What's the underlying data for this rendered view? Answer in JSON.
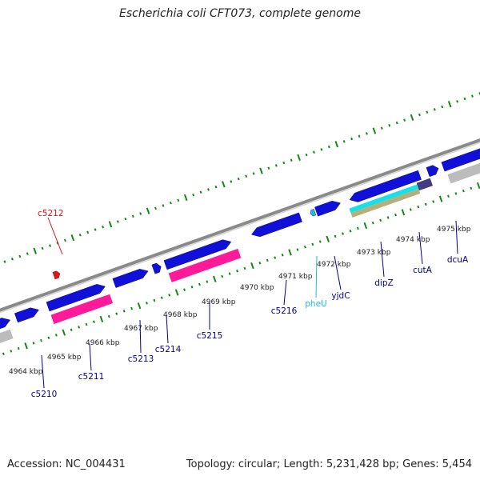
{
  "title": "Escherichia coli CFT073, complete genome",
  "footer": {
    "accession": "Accession: NC_004431",
    "topology": "Topology: circular; Length: 5,231,428 bp; Genes: 5,454"
  },
  "colors": {
    "cds": "#1010d8",
    "rna": "#ff1a9a",
    "grey": "#bcbcbc",
    "cyan": "#18e0e8",
    "tan": "#b8ae78",
    "red": "#ee1111",
    "backbone": "#8a8a8a",
    "tick": "#108a10",
    "label_dark": "#000090",
    "label_red": "#dd1111",
    "label_cyan": "#22b8e0"
  },
  "kbp_ticks": [
    "4964 kbp",
    "4965 kbp",
    "4966 kbp",
    "4967 kbp",
    "4968 kbp",
    "4969 kbp",
    "4970 kbp",
    "4971 kbp",
    "4972 kbp",
    "4973 kbp",
    "4974 kbp",
    "4975 kbp"
  ],
  "genes": [
    {
      "name": "c5210",
      "color": "dark"
    },
    {
      "name": "c5211",
      "color": "dark"
    },
    {
      "name": "c5212",
      "color": "red"
    },
    {
      "name": "c5213",
      "color": "dark"
    },
    {
      "name": "c5214",
      "color": "dark"
    },
    {
      "name": "c5215",
      "color": "dark"
    },
    {
      "name": "c5216",
      "color": "dark"
    },
    {
      "name": "pheU",
      "color": "cyan"
    },
    {
      "name": "yjdC",
      "color": "dark"
    },
    {
      "name": "dipZ",
      "color": "dark"
    },
    {
      "name": "cutA",
      "color": "dark"
    },
    {
      "name": "dcuA",
      "color": "dark"
    }
  ]
}
